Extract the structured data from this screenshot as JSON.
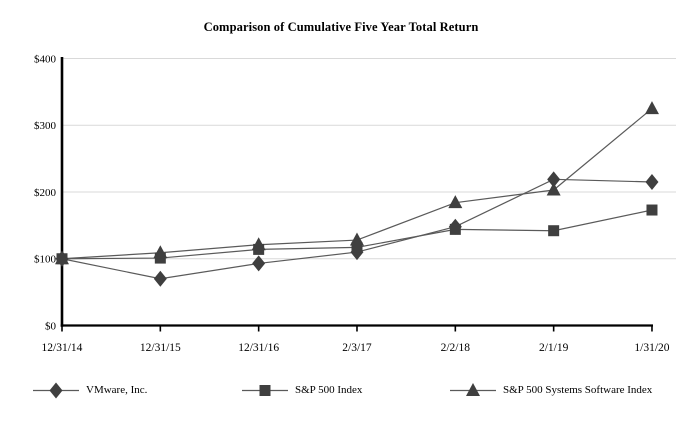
{
  "chart_data": {
    "type": "line",
    "title": "Comparison of Cumulative Five Year Total Return",
    "categories": [
      "12/31/14",
      "12/31/15",
      "12/31/16",
      "2/3/17",
      "2/2/18",
      "2/1/19",
      "1/31/20"
    ],
    "series": [
      {
        "name": "VMware, Inc.",
        "marker": "diamond",
        "values": [
          100,
          70,
          93,
          110,
          148,
          219,
          215
        ]
      },
      {
        "name": "S&P 500 Index",
        "marker": "square",
        "values": [
          100,
          101,
          114,
          117,
          144,
          142,
          173
        ]
      },
      {
        "name": "S&P 500 Systems Software Index",
        "marker": "triangle",
        "values": [
          100,
          109,
          121,
          128,
          184,
          203,
          325
        ]
      }
    ],
    "ylim": [
      0,
      400
    ],
    "ytick_step": 100,
    "ytick_labels": [
      "$0",
      "$100",
      "$200",
      "$300",
      "$400"
    ],
    "xlabel": "",
    "ylabel": "",
    "grid": "horizontal",
    "legend_position": "bottom",
    "colors": {
      "line": "#5a5a5a",
      "marker": "#3f3f3f",
      "grid": "#d9d9d9",
      "axis": "#000000",
      "text": "#000000"
    }
  }
}
